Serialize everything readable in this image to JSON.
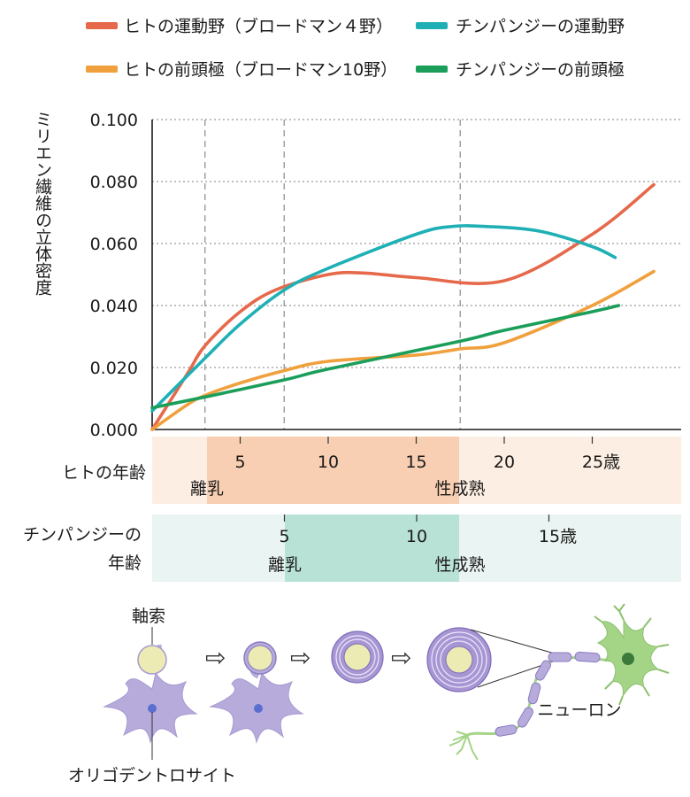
{
  "chart_data": {
    "type": "line",
    "ylabel": "ミリエン繊維の立体密度",
    "ylim": [
      0.0,
      0.1
    ],
    "yticks": [
      "0.000",
      "0.020",
      "0.040",
      "0.060",
      "0.080",
      "0.100"
    ],
    "grid": "horizontal dotted",
    "legend_position": "top",
    "series": [
      {
        "name": "ヒトの運動野（ブロードマン４野）",
        "color": "#e5694a",
        "x": [
          0,
          2,
          3,
          5,
          7,
          10,
          12,
          15,
          20,
          25,
          28.5
        ],
        "y": [
          0.0,
          0.018,
          0.027,
          0.038,
          0.045,
          0.05,
          0.0505,
          0.049,
          0.048,
          0.063,
          0.079
        ]
      },
      {
        "name": "チンパンジーの運動野",
        "color": "#1fb0b5",
        "x": [
          0,
          3,
          5,
          7.5,
          10,
          15,
          17,
          19,
          22,
          25,
          26.3
        ],
        "y": [
          0.006,
          0.023,
          0.034,
          0.045,
          0.052,
          0.063,
          0.0655,
          0.0655,
          0.064,
          0.059,
          0.0555
        ]
      },
      {
        "name": "ヒトの前頭極（ブロードマン10野）",
        "color": "#f0a03c",
        "x": [
          0,
          2,
          3,
          5,
          7.5,
          10,
          15,
          17.5,
          20,
          25,
          28.5
        ],
        "y": [
          0.0,
          0.008,
          0.011,
          0.015,
          0.019,
          0.022,
          0.024,
          0.026,
          0.028,
          0.04,
          0.051
        ]
      },
      {
        "name": "チンパンジーの前頭極",
        "color": "#1a9e5a",
        "x": [
          0,
          3,
          7.5,
          10,
          17.5,
          20,
          25,
          26.5
        ],
        "y": [
          0.007,
          0.0105,
          0.016,
          0.0195,
          0.0285,
          0.032,
          0.038,
          0.04
        ]
      }
    ],
    "vlines_x": [
      3,
      7.5,
      17.5
    ]
  },
  "human_axis": {
    "label": "ヒトの年齢",
    "ticks": [
      {
        "v": 5,
        "t": "5"
      },
      {
        "v": 10,
        "t": "10"
      },
      {
        "v": 15,
        "t": "15"
      },
      {
        "v": 20,
        "t": "20"
      },
      {
        "v": 25,
        "t": "25歳"
      }
    ],
    "weaning": "離乳",
    "puberty": "性成熟",
    "colors": {
      "light": "#fdeee3",
      "dark": "#f8cfb2"
    }
  },
  "chimp_axis": {
    "label": [
      "チンパンジーの",
      "年齢"
    ],
    "ticks": [
      {
        "v": 5,
        "t": "5"
      },
      {
        "v": 10,
        "t": "10"
      },
      {
        "v": 15,
        "t": "15歳"
      }
    ],
    "weaning": "離乳",
    "puberty": "性成熟",
    "colors": {
      "light": "#eaf4f2",
      "dark": "#b9e2d6"
    }
  },
  "diagram": {
    "axon_label": "軸索",
    "oligo_label": "オリゴデントロサイト",
    "neuron_label": "ニューロン",
    "arrow": "⇨",
    "colors": {
      "axon": "#ecebb4",
      "cell": "#b7abdc",
      "cell_nucleus": "#5a6fcf",
      "myelin": "#a896d4",
      "neuron": "#a4d486",
      "neuron_nucleus": "#3c7a3c"
    }
  }
}
